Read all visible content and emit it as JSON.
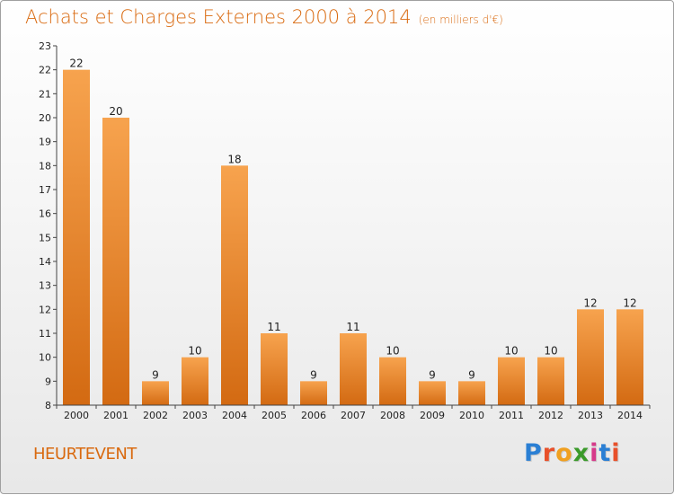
{
  "header": {
    "title": "Achats et Charges Externes 2000 à 2014",
    "unit": "(en milliers d'€)"
  },
  "footer": {
    "commune": "HEURTEVENT",
    "logo": "Proxiti"
  },
  "colors": {
    "bar_top": "#f7a34e",
    "bar_bottom": "#d36a12",
    "title": "#d96a10"
  },
  "chart_data": {
    "type": "bar",
    "title": "Achats et Charges Externes 2000 à 2014",
    "xlabel": "",
    "ylabel": "",
    "categories": [
      "2000",
      "2001",
      "2002",
      "2003",
      "2004",
      "2005",
      "2006",
      "2007",
      "2008",
      "2009",
      "2010",
      "2011",
      "2012",
      "2013",
      "2014"
    ],
    "values": [
      22,
      20,
      9,
      10,
      18,
      11,
      9,
      11,
      10,
      9,
      9,
      10,
      10,
      12,
      12
    ],
    "ylim": [
      8,
      23
    ],
    "yticks": [
      8,
      9,
      10,
      11,
      12,
      13,
      14,
      15,
      16,
      17,
      18,
      19,
      20,
      21,
      22,
      23
    ],
    "grid": false,
    "legend": "none"
  }
}
